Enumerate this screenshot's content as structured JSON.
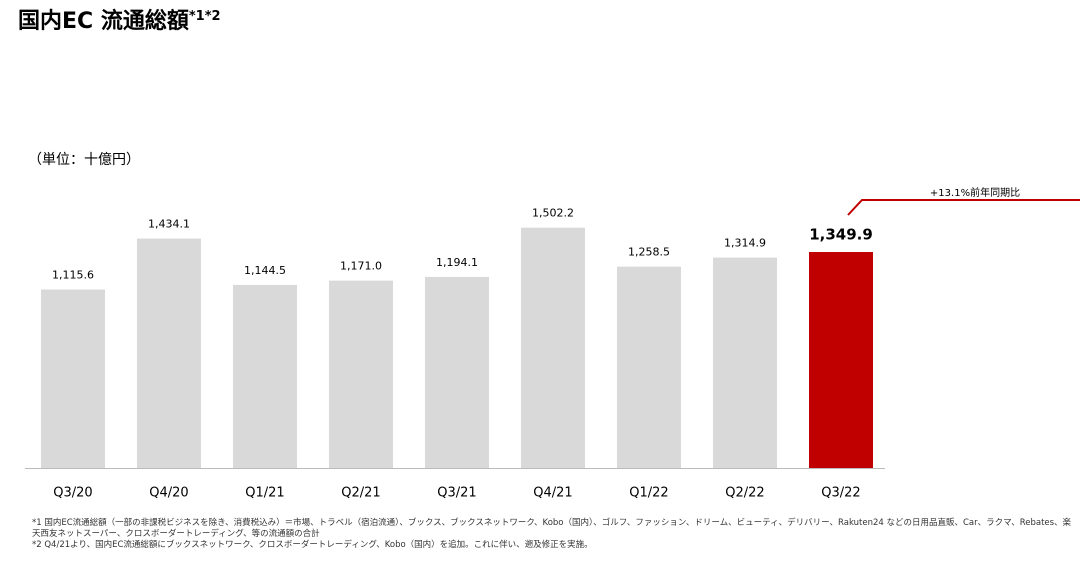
{
  "chart_data": {
    "type": "bar",
    "title": "国内EC 流通総額",
    "title_note": "*1*2",
    "unit_label": "（単位：十億円）",
    "categories": [
      "Q3/20",
      "Q4/20",
      "Q1/21",
      "Q2/21",
      "Q3/21",
      "Q4/21",
      "Q1/22",
      "Q2/22",
      "Q3/22"
    ],
    "values": [
      1115.6,
      1434.1,
      1144.5,
      1171.0,
      1194.1,
      1502.2,
      1258.5,
      1314.9,
      1349.9
    ],
    "value_labels": [
      "1,115.6",
      "1,434.1",
      "1,144.5",
      "1,171.0",
      "1,194.1",
      "1,502.2",
      "1,258.5",
      "1,314.9",
      "1,349.9"
    ],
    "colors": [
      "#d9d9d9",
      "#d9d9d9",
      "#d9d9d9",
      "#d9d9d9",
      "#d9d9d9",
      "#d9d9d9",
      "#d9d9d9",
      "#d9d9d9",
      "#c00000"
    ],
    "ylim": [
      0,
      2000
    ],
    "annotation": "+13.1%前年同期比",
    "footnotes": [
      "*1 国内EC流通総額（一部の非課税ビジネスを除き、消費税込み）＝市場、トラベル（宿泊流通）、ブックス、ブックスネットワーク、Kobo（国内）、ゴルフ、ファッション、ドリーム、ビューティ、デリバリー、Rakuten24 などの日用品直販、Car、ラクマ、Rebates、楽天西友ネットスーパー、クロスボーダートレーディング、等の流通額の合計",
      "*2 Q4/21より、国内EC流通総額にブックスネットワーク、クロスボーダートレーディング、Kobo（国内）を追加。これに伴い、遡及修正を実施。"
    ]
  }
}
